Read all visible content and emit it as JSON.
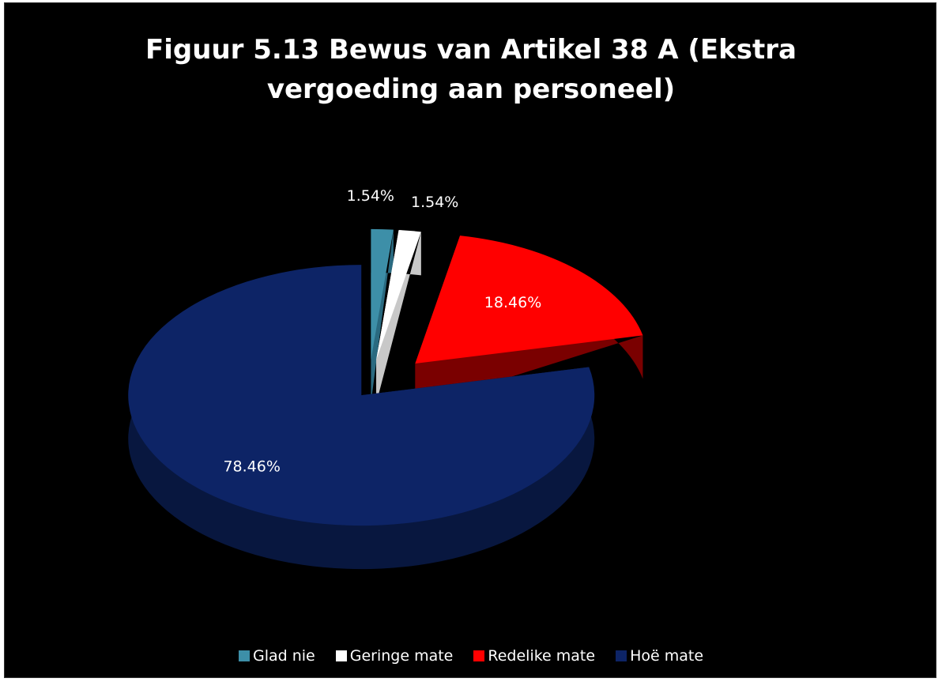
{
  "chart_data": {
    "type": "pie",
    "title": "Figuur 5.13 Bewus van Artikel 38 A (Ekstra vergoeding aan personeel)",
    "title_lines": [
      "Figuur 5.13 Bewus van Artikel 38 A (Ekstra",
      "vergoeding aan personeel)"
    ],
    "categories": [
      "Glad nie",
      "Geringe mate",
      "Redelike mate",
      "Hoë mate"
    ],
    "values": [
      1.54,
      1.54,
      18.46,
      78.46
    ],
    "labels": [
      "1.54%",
      "1.54%",
      "18.46%",
      "78.46%"
    ],
    "colors": [
      "#3d8fa8",
      "#ffffff",
      "#ff0000",
      "#0d2466"
    ],
    "side_colors": [
      "#2a6a80",
      "#c8c8c8",
      "#7a0000",
      "#08173f"
    ],
    "label_colors": [
      "#ffffff",
      "#ffffff",
      "#ffffff",
      "#ffffff"
    ],
    "legend_position": "bottom",
    "style": "3d-exploded"
  }
}
